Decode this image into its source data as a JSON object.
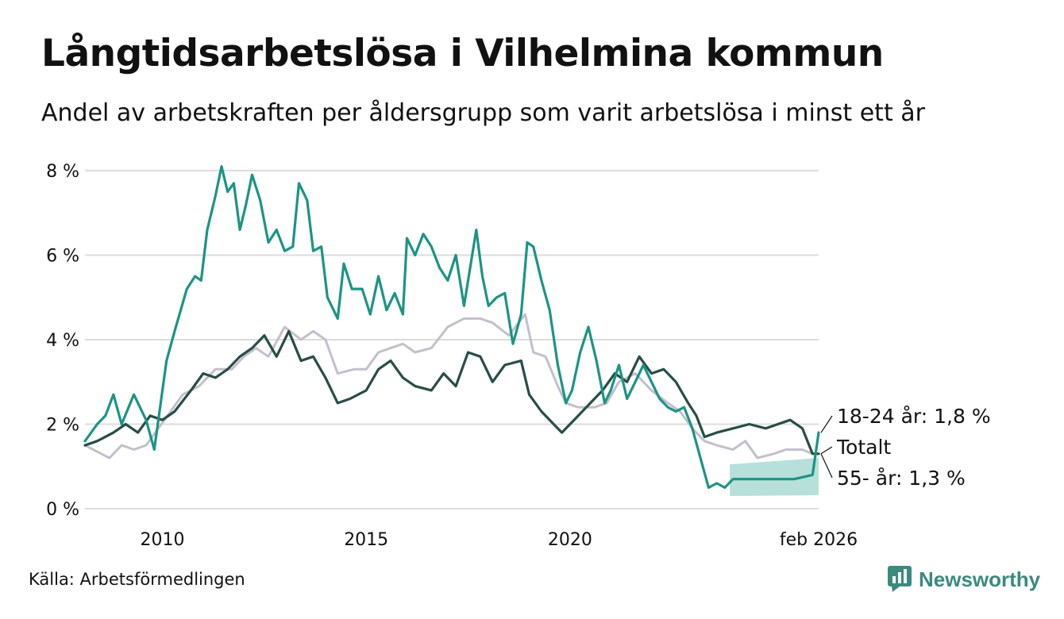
{
  "header": {
    "title": "Långtidsarbetslösa i Vilhelmina kommun",
    "subtitle": "Andel av arbetskraften per åldersgrupp som varit arbetslösa i minst ett år"
  },
  "footer": {
    "source": "Källa: Arbetsförmedlingen",
    "brand": "Newsworthy"
  },
  "colors": {
    "young": "#1c9483",
    "total": "#c3bfcb",
    "old": "#284d47",
    "band": "#a9dad2",
    "grid": "#dcdcdc",
    "brand": "#3a8a7d"
  },
  "chart_data": {
    "type": "line",
    "title": "Långtidsarbetslösa i Vilhelmina kommun",
    "xlabel": "",
    "ylabel": "",
    "xlim": [
      2008.1,
      2026.1
    ],
    "ylim": [
      0,
      8
    ],
    "grid": true,
    "y_ticks": [
      0,
      2,
      4,
      6,
      8
    ],
    "y_tick_labels": [
      "0 %",
      "2 %",
      "4 %",
      "6 %",
      "8 %"
    ],
    "x_ticks": [
      2010,
      2015,
      2020,
      2026.1
    ],
    "x_tick_labels": [
      "2010",
      "2015",
      "2020",
      "feb 2026"
    ],
    "series": [
      {
        "key": "total",
        "name": "Totalt",
        "end_label": "Totalt",
        "points": [
          [
            2008.1,
            1.5
          ],
          [
            2008.5,
            1.3
          ],
          [
            2008.7,
            1.2
          ],
          [
            2009.0,
            1.5
          ],
          [
            2009.3,
            1.4
          ],
          [
            2009.6,
            1.5
          ],
          [
            2009.9,
            1.9
          ],
          [
            2010.2,
            2.3
          ],
          [
            2010.5,
            2.7
          ],
          [
            2010.9,
            2.9
          ],
          [
            2011.3,
            3.3
          ],
          [
            2011.7,
            3.3
          ],
          [
            2012.0,
            3.6
          ],
          [
            2012.3,
            3.8
          ],
          [
            2012.6,
            3.6
          ],
          [
            2013.0,
            4.3
          ],
          [
            2013.4,
            4.0
          ],
          [
            2013.7,
            4.2
          ],
          [
            2014.0,
            4.0
          ],
          [
            2014.3,
            3.2
          ],
          [
            2014.7,
            3.3
          ],
          [
            2015.0,
            3.3
          ],
          [
            2015.3,
            3.7
          ],
          [
            2015.6,
            3.8
          ],
          [
            2015.9,
            3.9
          ],
          [
            2016.2,
            3.7
          ],
          [
            2016.6,
            3.8
          ],
          [
            2017.0,
            4.3
          ],
          [
            2017.4,
            4.5
          ],
          [
            2017.8,
            4.5
          ],
          [
            2018.1,
            4.4
          ],
          [
            2018.5,
            4.1
          ],
          [
            2018.9,
            4.6
          ],
          [
            2019.1,
            3.7
          ],
          [
            2019.4,
            3.6
          ],
          [
            2019.7,
            2.9
          ],
          [
            2019.9,
            2.5
          ],
          [
            2020.2,
            2.4
          ],
          [
            2020.6,
            2.4
          ],
          [
            2020.9,
            2.5
          ],
          [
            2021.2,
            3.0
          ],
          [
            2021.6,
            3.2
          ],
          [
            2022.0,
            2.8
          ],
          [
            2022.4,
            2.5
          ],
          [
            2022.7,
            2.3
          ],
          [
            2023.0,
            1.9
          ],
          [
            2023.3,
            1.6
          ],
          [
            2023.6,
            1.5
          ],
          [
            2024.0,
            1.4
          ],
          [
            2024.3,
            1.6
          ],
          [
            2024.6,
            1.2
          ],
          [
            2025.0,
            1.3
          ],
          [
            2025.3,
            1.4
          ],
          [
            2025.7,
            1.4
          ],
          [
            2025.95,
            1.3
          ],
          [
            2026.1,
            1.3
          ]
        ]
      },
      {
        "key": "old",
        "name": "55- år",
        "end_label": "55- år: 1,3 %",
        "last_value": 1.3,
        "points": [
          [
            2008.1,
            1.5
          ],
          [
            2008.4,
            1.6
          ],
          [
            2008.8,
            1.8
          ],
          [
            2009.1,
            2.0
          ],
          [
            2009.4,
            1.8
          ],
          [
            2009.7,
            2.2
          ],
          [
            2010.0,
            2.1
          ],
          [
            2010.3,
            2.3
          ],
          [
            2010.7,
            2.8
          ],
          [
            2011.0,
            3.2
          ],
          [
            2011.3,
            3.1
          ],
          [
            2011.6,
            3.3
          ],
          [
            2011.9,
            3.6
          ],
          [
            2012.2,
            3.8
          ],
          [
            2012.5,
            4.1
          ],
          [
            2012.8,
            3.6
          ],
          [
            2013.1,
            4.2
          ],
          [
            2013.4,
            3.5
          ],
          [
            2013.7,
            3.6
          ],
          [
            2014.0,
            3.1
          ],
          [
            2014.3,
            2.5
          ],
          [
            2014.6,
            2.6
          ],
          [
            2015.0,
            2.8
          ],
          [
            2015.3,
            3.3
          ],
          [
            2015.6,
            3.5
          ],
          [
            2015.9,
            3.1
          ],
          [
            2016.2,
            2.9
          ],
          [
            2016.6,
            2.8
          ],
          [
            2016.9,
            3.2
          ],
          [
            2017.2,
            2.9
          ],
          [
            2017.5,
            3.7
          ],
          [
            2017.8,
            3.6
          ],
          [
            2018.1,
            3.0
          ],
          [
            2018.4,
            3.4
          ],
          [
            2018.8,
            3.5
          ],
          [
            2019.0,
            2.7
          ],
          [
            2019.3,
            2.3
          ],
          [
            2019.6,
            2.0
          ],
          [
            2019.8,
            1.8
          ],
          [
            2020.1,
            2.1
          ],
          [
            2020.5,
            2.5
          ],
          [
            2020.8,
            2.8
          ],
          [
            2021.1,
            3.2
          ],
          [
            2021.4,
            3.0
          ],
          [
            2021.7,
            3.6
          ],
          [
            2022.0,
            3.2
          ],
          [
            2022.3,
            3.3
          ],
          [
            2022.6,
            3.0
          ],
          [
            2022.9,
            2.5
          ],
          [
            2023.1,
            2.2
          ],
          [
            2023.3,
            1.7
          ],
          [
            2023.6,
            1.8
          ],
          [
            2024.0,
            1.9
          ],
          [
            2024.4,
            2.0
          ],
          [
            2024.8,
            1.9
          ],
          [
            2025.1,
            2.0
          ],
          [
            2025.4,
            2.1
          ],
          [
            2025.7,
            1.9
          ],
          [
            2025.95,
            1.3
          ],
          [
            2026.1,
            1.3
          ]
        ]
      },
      {
        "key": "young",
        "name": "18-24 år",
        "end_label": "18-24 år: 1,8 %",
        "last_value": 1.8,
        "points": [
          [
            2008.1,
            1.6
          ],
          [
            2008.4,
            2.0
          ],
          [
            2008.6,
            2.2
          ],
          [
            2008.8,
            2.7
          ],
          [
            2009.0,
            2.0
          ],
          [
            2009.3,
            2.7
          ],
          [
            2009.6,
            2.1
          ],
          [
            2009.8,
            1.4
          ],
          [
            2010.1,
            3.5
          ],
          [
            2010.3,
            4.2
          ],
          [
            2010.6,
            5.2
          ],
          [
            2010.8,
            5.5
          ],
          [
            2010.95,
            5.4
          ],
          [
            2011.1,
            6.6
          ],
          [
            2011.3,
            7.4
          ],
          [
            2011.45,
            8.1
          ],
          [
            2011.6,
            7.5
          ],
          [
            2011.75,
            7.7
          ],
          [
            2011.9,
            6.6
          ],
          [
            2012.05,
            7.2
          ],
          [
            2012.2,
            7.9
          ],
          [
            2012.4,
            7.3
          ],
          [
            2012.6,
            6.3
          ],
          [
            2012.8,
            6.6
          ],
          [
            2013.0,
            6.1
          ],
          [
            2013.2,
            6.2
          ],
          [
            2013.35,
            7.7
          ],
          [
            2013.55,
            7.3
          ],
          [
            2013.7,
            6.1
          ],
          [
            2013.9,
            6.2
          ],
          [
            2014.05,
            5.0
          ],
          [
            2014.3,
            4.5
          ],
          [
            2014.45,
            5.8
          ],
          [
            2014.65,
            5.2
          ],
          [
            2014.9,
            5.2
          ],
          [
            2015.1,
            4.6
          ],
          [
            2015.3,
            5.5
          ],
          [
            2015.5,
            4.7
          ],
          [
            2015.7,
            5.1
          ],
          [
            2015.9,
            4.6
          ],
          [
            2016.0,
            6.4
          ],
          [
            2016.2,
            6.0
          ],
          [
            2016.4,
            6.5
          ],
          [
            2016.6,
            6.2
          ],
          [
            2016.8,
            5.7
          ],
          [
            2017.0,
            5.4
          ],
          [
            2017.2,
            6.0
          ],
          [
            2017.4,
            4.8
          ],
          [
            2017.55,
            5.7
          ],
          [
            2017.7,
            6.6
          ],
          [
            2017.85,
            5.5
          ],
          [
            2018.0,
            4.8
          ],
          [
            2018.2,
            5.0
          ],
          [
            2018.4,
            5.1
          ],
          [
            2018.6,
            3.9
          ],
          [
            2018.8,
            4.6
          ],
          [
            2018.95,
            6.3
          ],
          [
            2019.1,
            6.2
          ],
          [
            2019.3,
            5.4
          ],
          [
            2019.5,
            4.7
          ],
          [
            2019.7,
            3.4
          ],
          [
            2019.9,
            2.5
          ],
          [
            2020.05,
            2.8
          ],
          [
            2020.25,
            3.7
          ],
          [
            2020.45,
            4.3
          ],
          [
            2020.65,
            3.5
          ],
          [
            2020.85,
            2.5
          ],
          [
            2021.0,
            2.8
          ],
          [
            2021.2,
            3.4
          ],
          [
            2021.4,
            2.6
          ],
          [
            2021.6,
            3.0
          ],
          [
            2021.8,
            3.4
          ],
          [
            2022.0,
            3.0
          ],
          [
            2022.2,
            2.6
          ],
          [
            2022.4,
            2.4
          ],
          [
            2022.6,
            2.3
          ],
          [
            2022.8,
            2.4
          ],
          [
            2023.0,
            1.9
          ],
          [
            2023.2,
            1.2
          ],
          [
            2023.4,
            0.5
          ],
          [
            2023.6,
            0.6
          ],
          [
            2023.8,
            0.5
          ],
          [
            2024.0,
            0.7
          ],
          [
            2024.3,
            0.7
          ],
          [
            2024.7,
            0.7
          ],
          [
            2025.1,
            0.7
          ],
          [
            2025.5,
            0.7
          ],
          [
            2025.95,
            0.8
          ],
          [
            2026.1,
            1.8
          ]
        ]
      }
    ],
    "uncertainty_band": {
      "series": "young",
      "start": 2023.92,
      "end": 2026.1,
      "lower_start": 0.3,
      "upper_start": 1.05,
      "lower_end": 0.32,
      "upper_end": 1.2
    }
  }
}
